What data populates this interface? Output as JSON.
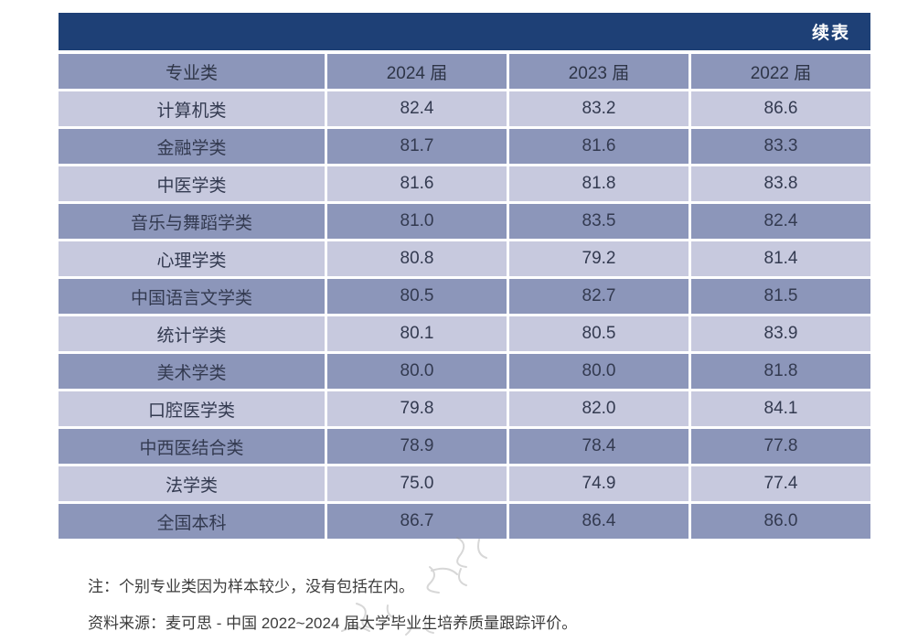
{
  "page": {
    "continued_label": "续表"
  },
  "table": {
    "columns": [
      "专业类",
      "2024 届",
      "2023 届",
      "2022 届"
    ],
    "rows": [
      {
        "category": "计算机类",
        "values": [
          "82.4",
          "83.2",
          "86.6"
        ]
      },
      {
        "category": "金融学类",
        "values": [
          "81.7",
          "81.6",
          "83.3"
        ]
      },
      {
        "category": "中医学类",
        "values": [
          "81.6",
          "81.8",
          "83.8"
        ]
      },
      {
        "category": "音乐与舞蹈学类",
        "values": [
          "81.0",
          "83.5",
          "82.4"
        ]
      },
      {
        "category": "心理学类",
        "values": [
          "80.8",
          "79.2",
          "81.4"
        ]
      },
      {
        "category": "中国语言文学类",
        "values": [
          "80.5",
          "82.7",
          "81.5"
        ]
      },
      {
        "category": "统计学类",
        "values": [
          "80.1",
          "80.5",
          "83.9"
        ]
      },
      {
        "category": "美术学类",
        "values": [
          "80.0",
          "80.0",
          "81.8"
        ]
      },
      {
        "category": "口腔医学类",
        "values": [
          "79.8",
          "82.0",
          "84.1"
        ]
      },
      {
        "category": "中西医结合类",
        "values": [
          "78.9",
          "78.4",
          "77.8"
        ]
      },
      {
        "category": "法学类",
        "values": [
          "75.0",
          "74.9",
          "77.4"
        ]
      },
      {
        "category": "全国本科",
        "values": [
          "86.7",
          "86.4",
          "86.0"
        ]
      }
    ]
  },
  "notes": {
    "footnote": "注：个别专业类因为样本较少，没有包括在内。",
    "source": "资料来源：麦可思 - 中国 2022~2024 届大学毕业生培养质量跟踪评价。"
  },
  "colors": {
    "header_bar": "#1E4076",
    "header_row": "#8C96BA",
    "row_light": "#C7C9DE",
    "row_dark": "#8C96BA",
    "cell_text": "#333A50"
  }
}
